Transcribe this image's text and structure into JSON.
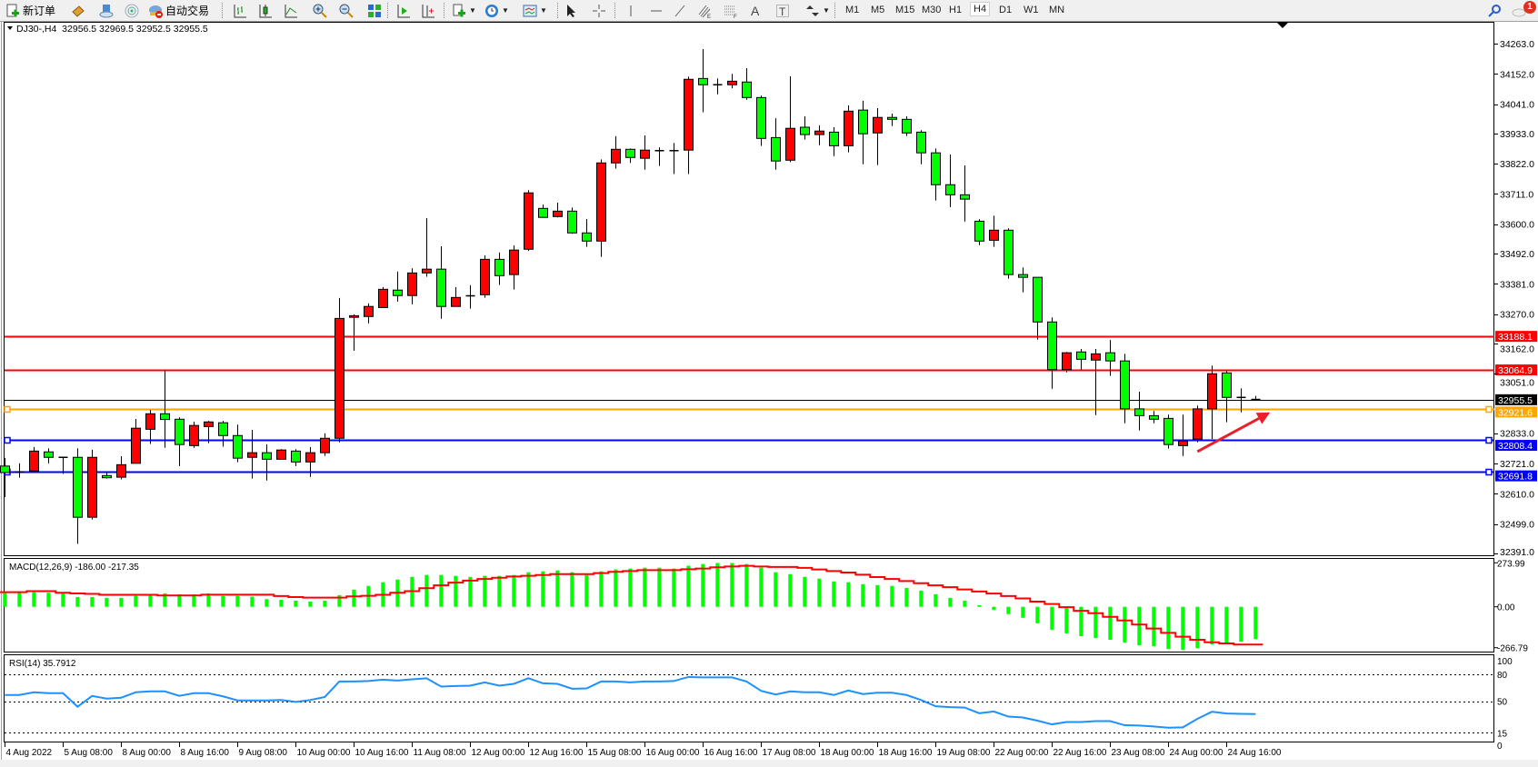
{
  "toolbar": {
    "new_order_label": "新订单",
    "auto_trading_label": "自动交易",
    "timeframes": [
      "M1",
      "M5",
      "M15",
      "M30",
      "H1",
      "H4",
      "D1",
      "W1",
      "MN"
    ],
    "active_timeframe": "H4",
    "notification_count": "1",
    "icons": [
      "new-order-icon",
      "history-center-icon",
      "cloud-icon",
      "signal-icon",
      "auto-trading-icon",
      "bar-chart-icon",
      "candlestick-icon",
      "line-chart-icon",
      "zoom-in-icon",
      "zoom-out-icon",
      "tile-windows-icon",
      "autoscroll-icon",
      "chart-shift-icon",
      "indicators-icon",
      "periods-icon",
      "templates-icon",
      "cursor-icon",
      "crosshair-icon",
      "vertical-line-icon",
      "horizontal-line-icon",
      "trendline-icon",
      "fibo-channel-icon",
      "fibo-retracement-icon",
      "text-icon",
      "text-label-icon",
      "arrows-icon",
      "search-icon",
      "chat-icon"
    ]
  },
  "chart": {
    "symbol_info": "DJ30-,H4  32956.5 32969.5 32952.5 32955.5",
    "bull_color": "#ff0000",
    "bear_color": "#00ff00"
  },
  "chart_data": [
    {
      "type": "candlestick",
      "symbol": "DJ30-",
      "timeframe": "H4",
      "y_ticks": [
        "34263.0",
        "34152.0",
        "34041.0",
        "33933.0",
        "33822.0",
        "33711.0",
        "33600.0",
        "33492.0",
        "33381.0",
        "33270.0",
        "33162.0",
        "33051.0",
        "32833.0",
        "32721.0",
        "32610.0",
        "32499.0",
        "32391.0"
      ],
      "ylim": [
        32391.0,
        34263.0
      ],
      "time_labels": [
        {
          "label": "4 Aug 2022",
          "bar": 0
        },
        {
          "label": "5 Aug 08:00",
          "bar": 4
        },
        {
          "label": "8 Aug 00:00",
          "bar": 8
        },
        {
          "label": "8 Aug 16:00",
          "bar": 12
        },
        {
          "label": "9 Aug 08:00",
          "bar": 16
        },
        {
          "label": "10 Aug 00:00",
          "bar": 20
        },
        {
          "label": "10 Aug 16:00",
          "bar": 24
        },
        {
          "label": "11 Aug 08:00",
          "bar": 28
        },
        {
          "label": "12 Aug 00:00",
          "bar": 32
        },
        {
          "label": "12 Aug 16:00",
          "bar": 36
        },
        {
          "label": "15 Aug 08:00",
          "bar": 40
        },
        {
          "label": "16 Aug 00:00",
          "bar": 44
        },
        {
          "label": "16 Aug 16:00",
          "bar": 48
        },
        {
          "label": "17 Aug 08:00",
          "bar": 52
        },
        {
          "label": "18 Aug 00:00",
          "bar": 56
        },
        {
          "label": "18 Aug 16:00",
          "bar": 60
        },
        {
          "label": "19 Aug 08:00",
          "bar": 64
        },
        {
          "label": "22 Aug 00:00",
          "bar": 68
        },
        {
          "label": "22 Aug 16:00",
          "bar": 72
        },
        {
          "label": "23 Aug 08:00",
          "bar": 76
        },
        {
          "label": "24 Aug 00:00",
          "bar": 80
        },
        {
          "label": "24 Aug 16:00",
          "bar": 84
        }
      ],
      "ohlc": [
        [
          32712,
          32742,
          32598,
          32688
        ],
        [
          32690,
          32722,
          32669,
          32688
        ],
        [
          32694,
          32782,
          32692,
          32767
        ],
        [
          32764,
          32777,
          32722,
          32744
        ],
        [
          32744,
          32746,
          32683,
          32743
        ],
        [
          32744,
          32777,
          32426,
          32524
        ],
        [
          32524,
          32772,
          32516,
          32744
        ],
        [
          32677,
          32688,
          32666,
          32669
        ],
        [
          32671,
          32748,
          32663,
          32717
        ],
        [
          32722,
          32885,
          32721,
          32851
        ],
        [
          32847,
          32918,
          32793,
          32904
        ],
        [
          32904,
          33063,
          32779,
          32883
        ],
        [
          32884,
          32891,
          32712,
          32791
        ],
        [
          32787,
          32875,
          32779,
          32861
        ],
        [
          32857,
          32878,
          32796,
          32874
        ],
        [
          32871,
          32878,
          32783,
          32824
        ],
        [
          32824,
          32864,
          32726,
          32741
        ],
        [
          32744,
          32845,
          32666,
          32761
        ],
        [
          32761,
          32792,
          32659,
          32737
        ],
        [
          32737,
          32774,
          32737,
          32771
        ],
        [
          32767,
          32774,
          32712,
          32727
        ],
        [
          32727,
          32782,
          32672,
          32761
        ],
        [
          32761,
          32832,
          32749,
          32814
        ],
        [
          32814,
          33329,
          32799,
          33254
        ],
        [
          33258,
          33269,
          33135,
          33264
        ],
        [
          33261,
          33309,
          33236,
          33298
        ],
        [
          33294,
          33369,
          33294,
          33361
        ],
        [
          33358,
          33426,
          33316,
          33338
        ],
        [
          33338,
          33438,
          33306,
          33421
        ],
        [
          33421,
          33622,
          33407,
          33435
        ],
        [
          33435,
          33519,
          33253,
          33298
        ],
        [
          33298,
          33369,
          33298,
          33331
        ],
        [
          33336,
          33376,
          33290,
          33337
        ],
        [
          33341,
          33485,
          33330,
          33471
        ],
        [
          33471,
          33496,
          33377,
          33411
        ],
        [
          33415,
          33522,
          33360,
          33505
        ],
        [
          33508,
          33725,
          33502,
          33715
        ],
        [
          33658,
          33672,
          33625,
          33625
        ],
        [
          33628,
          33679,
          33625,
          33648
        ],
        [
          33648,
          33661,
          33565,
          33568
        ],
        [
          33568,
          33619,
          33517,
          33538
        ],
        [
          33538,
          33838,
          33480,
          33825
        ],
        [
          33825,
          33923,
          33804,
          33875
        ],
        [
          33875,
          33878,
          33825,
          33845
        ],
        [
          33842,
          33926,
          33800,
          33872
        ],
        [
          33869,
          33882,
          33814,
          33870
        ],
        [
          33870,
          33898,
          33784,
          33869
        ],
        [
          33872,
          34142,
          33784,
          34132
        ],
        [
          34135,
          34243,
          34011,
          34112
        ],
        [
          34112,
          34135,
          34077,
          34111
        ],
        [
          34112,
          34152,
          34099,
          34125
        ],
        [
          34122,
          34173,
          34057,
          34065
        ],
        [
          34065,
          34072,
          33887,
          33915
        ],
        [
          33918,
          33989,
          33800,
          33832
        ],
        [
          33835,
          34143,
          33828,
          33952
        ],
        [
          33956,
          33996,
          33911,
          33929
        ],
        [
          33929,
          33963,
          33890,
          33942
        ],
        [
          33938,
          33956,
          33850,
          33888
        ],
        [
          33888,
          34036,
          33864,
          34015
        ],
        [
          34019,
          34053,
          33820,
          33932
        ],
        [
          33935,
          34026,
          33817,
          33992
        ],
        [
          33992,
          34006,
          33960,
          33985
        ],
        [
          33985,
          33996,
          33924,
          33935
        ],
        [
          33938,
          33945,
          33820,
          33862
        ],
        [
          33862,
          33878,
          33687,
          33745
        ],
        [
          33745,
          33856,
          33663,
          33708
        ],
        [
          33708,
          33816,
          33610,
          33692
        ],
        [
          33611,
          33618,
          33523,
          33538
        ],
        [
          33541,
          33631,
          33517,
          33578
        ],
        [
          33578,
          33585,
          33400,
          33415
        ],
        [
          33415,
          33441,
          33350,
          33405
        ],
        [
          33405,
          33405,
          33176,
          33241
        ],
        [
          33241,
          33258,
          32996,
          33066
        ],
        [
          33066,
          33131,
          33056,
          33128
        ],
        [
          33131,
          33142,
          33066,
          33104
        ],
        [
          33101,
          33142,
          32899,
          33124
        ],
        [
          33128,
          33175,
          33043,
          33098
        ],
        [
          33098,
          33124,
          32869,
          32922
        ],
        [
          32922,
          32985,
          32843,
          32897
        ],
        [
          32897,
          32914,
          32869,
          32884
        ],
        [
          32887,
          32901,
          32776,
          32791
        ],
        [
          32787,
          32901,
          32749,
          32804
        ],
        [
          32811,
          32934,
          32799,
          32922
        ],
        [
          32922,
          33081,
          32811,
          33051
        ],
        [
          33054,
          33061,
          32873,
          32964
        ],
        [
          32964,
          32997,
          32909,
          32959
        ],
        [
          32956.5,
          32969.5,
          32952.5,
          32955.5
        ]
      ],
      "price_levels": [
        {
          "price": 33188.1,
          "label": "33188.1",
          "color": "#ff0000",
          "text_color": "#ffffff"
        },
        {
          "price": 33064.9,
          "label": "33064.9",
          "color": "#ff0000",
          "text_color": "#ffffff"
        },
        {
          "price": 32955.5,
          "label": "32955.5",
          "color": "#000000",
          "text_color": "#ffffff"
        },
        {
          "price": 32921.6,
          "label": "32921.6",
          "color": "#ffa500",
          "text_color": "#ffffff"
        },
        {
          "price": 32808.4,
          "label": "32808.4",
          "color": "#0000ff",
          "text_color": "#ffffff"
        },
        {
          "price": 32691.8,
          "label": "32691.8",
          "color": "#0000ff",
          "text_color": "#ffffff"
        }
      ],
      "annotation": {
        "type": "arrow",
        "color": "#e8202a",
        "from": {
          "bar": 82,
          "price": 32765
        },
        "to": {
          "bar": 87,
          "price": 32909
        }
      }
    },
    {
      "type": "bar+line",
      "title": "MACD(12,26,9) -186.00 -217.35",
      "axis_labels": [
        "273.99",
        "0.00",
        "-266.79"
      ],
      "ylim": [
        -266.79,
        273.99
      ],
      "histogram_color": "#00ff00",
      "signal_color": "#ff0000",
      "histogram": [
        81,
        81,
        84,
        81,
        81,
        56,
        56,
        51,
        51,
        63,
        65,
        77,
        72,
        72,
        77,
        63,
        63,
        58,
        44,
        40,
        35,
        30,
        35,
        67,
        99,
        120,
        141,
        157,
        172,
        183,
        183,
        178,
        172,
        178,
        178,
        183,
        199,
        204,
        209,
        199,
        183,
        204,
        215,
        220,
        225,
        225,
        220,
        236,
        246,
        252,
        252,
        246,
        225,
        199,
        188,
        172,
        162,
        146,
        141,
        130,
        125,
        120,
        109,
        93,
        72,
        51,
        35,
        9,
        -18,
        -42,
        -63,
        -95,
        -132,
        -153,
        -169,
        -180,
        -190,
        -206,
        -222,
        -227,
        -243,
        -248,
        -238,
        -216,
        -211,
        -201,
        -186
      ],
      "signal": [
        84,
        84,
        90,
        90,
        81,
        77,
        74,
        69,
        69,
        69,
        69,
        65,
        65,
        65,
        70,
        70,
        70,
        70,
        70,
        62,
        56,
        53,
        53,
        53,
        60,
        63,
        69,
        81,
        90,
        107,
        123,
        139,
        151,
        160,
        167,
        174,
        178,
        183,
        188,
        188,
        188,
        194,
        201,
        206,
        211,
        211,
        211,
        216,
        220,
        227,
        232,
        236,
        232,
        229,
        229,
        224,
        215,
        206,
        197,
        185,
        171,
        160,
        148,
        136,
        123,
        113,
        100,
        88,
        76,
        62,
        48,
        30,
        16,
        -2,
        -23,
        -37,
        -58,
        -79,
        -102,
        -125,
        -150,
        -172,
        -190,
        -204,
        -211,
        -217,
        -217.35
      ]
    },
    {
      "type": "line",
      "title": "RSI(14) 35.7912",
      "axis_labels": [
        "100",
        "80",
        "50",
        "15",
        "0"
      ],
      "levels": [
        80,
        50,
        15
      ],
      "ylim": [
        0,
        100
      ],
      "color": "#1e90ff",
      "values": [
        57,
        57,
        60,
        59,
        59,
        44,
        56,
        53,
        54,
        60,
        61,
        61,
        56,
        59,
        59,
        55.5,
        51,
        51,
        51,
        51.4,
        49.3,
        51.4,
        54.8,
        72,
        72,
        72.5,
        74,
        73,
        74.5,
        75.6,
        66.4,
        67,
        67.4,
        71,
        67.4,
        69.4,
        75.6,
        70,
        69.4,
        64,
        64.3,
        72,
        72,
        71,
        72,
        72,
        72.5,
        77,
        76.6,
        76.6,
        76.6,
        72,
        61.6,
        57.5,
        61,
        60,
        60,
        57,
        62,
        58,
        59.5,
        59.5,
        57,
        51.4,
        44.5,
        43.5,
        43,
        36.7,
        38.7,
        33,
        32,
        28.5,
        24.4,
        27,
        27,
        28,
        28,
        23.4,
        23,
        22,
        20.7,
        21,
        30.5,
        38.4,
        36.4,
        36,
        35.7912
      ]
    }
  ]
}
